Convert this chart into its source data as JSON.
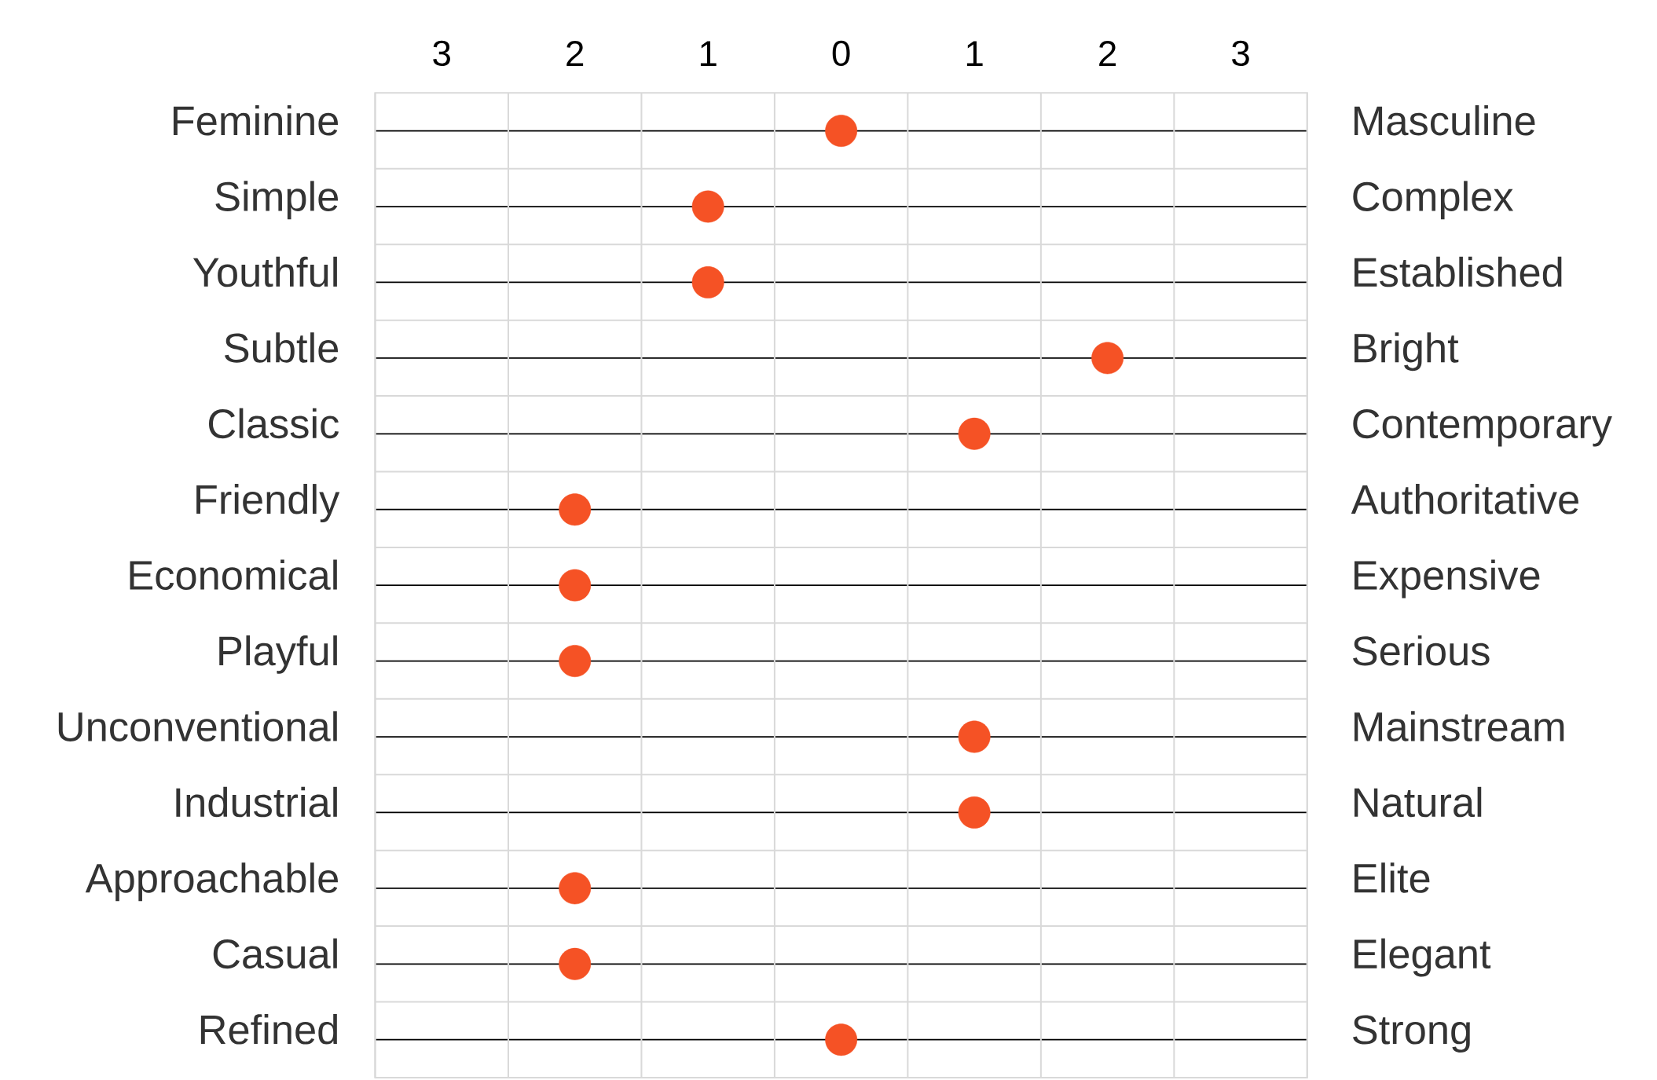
{
  "chart_data": {
    "type": "scatter",
    "orientation": "horizontal",
    "categories": [
      "Feminine",
      "Simple",
      "Youthful",
      "Subtle",
      "Classic",
      "Friendly",
      "Economical",
      "Playful",
      "Unconventional",
      "Industrial",
      "Approachable",
      "Casual",
      "Refined"
    ],
    "y2_categories": [
      "Masculine",
      "Complex",
      "Established",
      "Bright",
      "Contemporary",
      "Authoritative",
      "Expensive",
      "Serious",
      "Mainstream",
      "Natural",
      "Elite",
      "Elegant",
      "Strong"
    ],
    "series": [
      {
        "color": "#f55225",
        "values": [
          0,
          -1,
          -1,
          2,
          1,
          -2,
          -2,
          -2,
          1,
          1,
          -2,
          -2,
          0
        ]
      }
    ],
    "xlim": [
      -3.5,
      3.5
    ],
    "xticks": [
      {
        "value": -3.5,
        "label": null
      },
      {
        "value": -3,
        "label": "3"
      },
      {
        "value": -2.5,
        "label": null
      },
      {
        "value": -2,
        "label": "2"
      },
      {
        "value": -1.5,
        "label": null
      },
      {
        "value": -1,
        "label": "1"
      },
      {
        "value": -0.5,
        "label": null
      },
      {
        "value": 0,
        "label": "0"
      },
      {
        "value": 0.5,
        "label": null
      },
      {
        "value": 1,
        "label": "1"
      },
      {
        "value": 1.5,
        "label": null
      },
      {
        "value": 2,
        "label": "2"
      },
      {
        "value": 2.5,
        "label": null
      },
      {
        "value": 3,
        "label": "3"
      },
      {
        "value": 3.5,
        "label": null
      }
    ],
    "grid": true,
    "marker": "circle"
  }
}
